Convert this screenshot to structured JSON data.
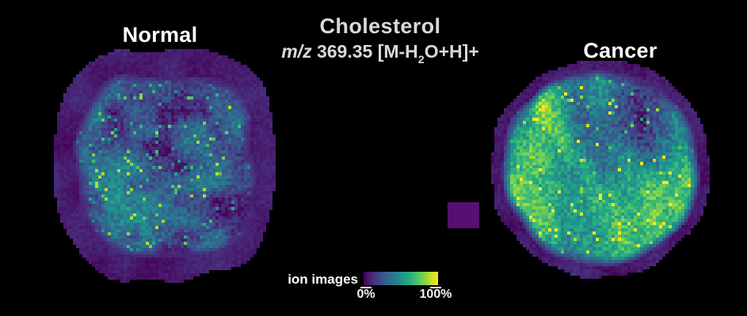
{
  "figure": {
    "background": "#000000"
  },
  "colors": {
    "chip": "#580f72",
    "title_text": "#d9d9d9",
    "label_text": "#ffffff",
    "tick_text": "#f2f2f2"
  },
  "chart_data": {
    "type": "heatmap",
    "title": "Cholesterol",
    "subtitle": "m/z 369.35 [M-H2O+H]+",
    "subtitle_parts": {
      "ion_italic": "m/z",
      "mass_text": " 369.35 [M-H",
      "subscript": "2",
      "adduct_suffix": "O+H]+"
    },
    "colormap": "viridis",
    "panels": [
      {
        "label": "Normal",
        "description": "normal tissue section ion image: thick purple rim, blue-teal mottled interior with scattered green speckles (low-to-moderate cholesterol signal)",
        "approx_mean_intensity_pct": 30
      },
      {
        "label": "Cancer",
        "description": "cancer tissue section ion image: thin purple rim, green interior with broad bright-yellow streaks and a darker blue patch at upper right (elevated cholesterol signal)",
        "approx_mean_intensity_pct": 65
      }
    ],
    "colorbar": {
      "label": "ion images",
      "min_label": "0%",
      "max_label": "100%",
      "range_pct": [
        0,
        100
      ],
      "gradient_stops": [
        {
          "t": 0.0,
          "color": "#440154"
        },
        {
          "t": 0.1,
          "color": "#482475"
        },
        {
          "t": 0.2,
          "color": "#414487"
        },
        {
          "t": 0.3,
          "color": "#355f8d"
        },
        {
          "t": 0.4,
          "color": "#2a788e"
        },
        {
          "t": 0.5,
          "color": "#21918c"
        },
        {
          "t": 0.6,
          "color": "#22a884"
        },
        {
          "t": 0.7,
          "color": "#44bf70"
        },
        {
          "t": 0.8,
          "color": "#7ad151"
        },
        {
          "t": 0.9,
          "color": "#bddf26"
        },
        {
          "t": 1.0,
          "color": "#fde725"
        }
      ]
    }
  }
}
